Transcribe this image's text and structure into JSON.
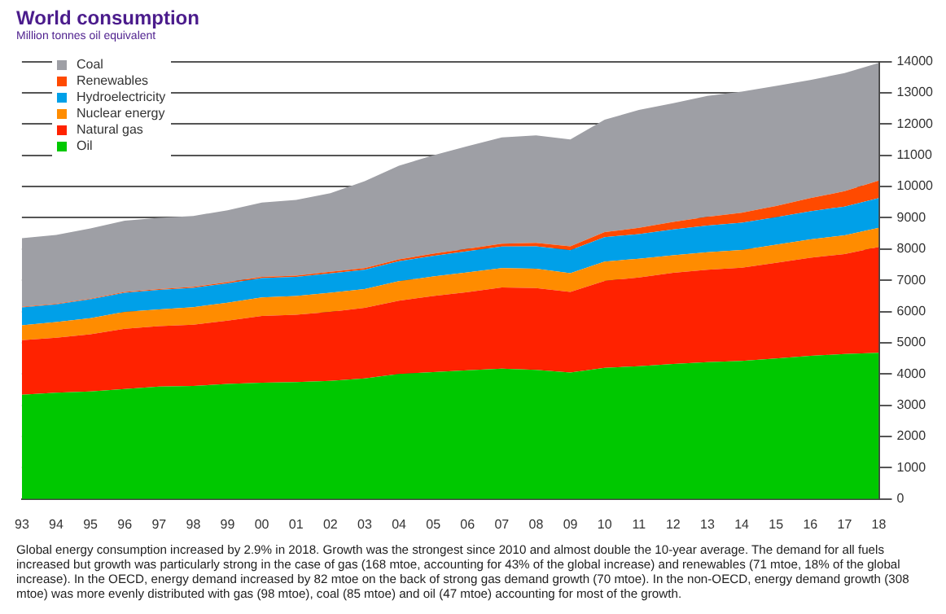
{
  "chart_data": {
    "type": "area",
    "title": "World consumption",
    "subtitle": "Million tonnes oil equivalent",
    "categories": [
      "93",
      "94",
      "95",
      "96",
      "97",
      "98",
      "99",
      "00",
      "01",
      "02",
      "03",
      "04",
      "05",
      "06",
      "07",
      "08",
      "09",
      "10",
      "11",
      "12",
      "13",
      "14",
      "15",
      "16",
      "17",
      "18"
    ],
    "stacked": true,
    "series": [
      {
        "name": "Oil",
        "color": "#00c800",
        "values": [
          3340,
          3400,
          3440,
          3520,
          3600,
          3620,
          3680,
          3720,
          3740,
          3780,
          3860,
          4000,
          4060,
          4120,
          4170,
          4130,
          4050,
          4200,
          4250,
          4320,
          4380,
          4420,
          4500,
          4580,
          4640,
          4680
        ]
      },
      {
        "name": "Natural gas",
        "color": "#ff2200",
        "values": [
          1740,
          1760,
          1830,
          1930,
          1930,
          1960,
          2030,
          2140,
          2160,
          2210,
          2260,
          2350,
          2440,
          2500,
          2600,
          2620,
          2580,
          2780,
          2840,
          2920,
          2960,
          2980,
          3060,
          3140,
          3200,
          3390
        ]
      },
      {
        "name": "Nuclear energy",
        "color": "#ff8c00",
        "values": [
          480,
          500,
          520,
          540,
          540,
          560,
          570,
          590,
          600,
          610,
          600,
          620,
          620,
          630,
          620,
          620,
          600,
          620,
          600,
          560,
          560,
          570,
          580,
          590,
          600,
          610
        ]
      },
      {
        "name": "Hydroelectricity",
        "color": "#00a0e8",
        "values": [
          570,
          570,
          600,
          610,
          620,
          620,
          620,
          620,
          610,
          620,
          620,
          640,
          660,
          680,
          690,
          720,
          730,
          780,
          790,
          830,
          850,
          870,
          880,
          900,
          920,
          950
        ]
      },
      {
        "name": "Renewables",
        "color": "#ff4a00",
        "values": [
          20,
          20,
          20,
          30,
          30,
          30,
          40,
          40,
          40,
          50,
          50,
          60,
          70,
          80,
          90,
          110,
          130,
          160,
          200,
          240,
          280,
          320,
          360,
          420,
          490,
          560
        ]
      },
      {
        "name": "Coal",
        "color": "#9e9fa5",
        "values": [
          2200,
          2200,
          2250,
          2280,
          2280,
          2270,
          2300,
          2380,
          2420,
          2520,
          2780,
          3000,
          3150,
          3280,
          3400,
          3440,
          3420,
          3600,
          3770,
          3800,
          3870,
          3880,
          3840,
          3780,
          3780,
          3770
        ]
      }
    ],
    "ylim": [
      0,
      14000
    ],
    "yticks": [
      0,
      1000,
      2000,
      3000,
      4000,
      5000,
      6000,
      7000,
      8000,
      9000,
      10000,
      11000,
      12000,
      13000,
      14000
    ],
    "grid": "y",
    "legend": "top left",
    "annotations": [
      "Global energy consumption increased by 2.9% in 2018. Growth was the strongest since 2010 and almost double the 10-year average. The demand for all fuels increased but growth was particularly strong in the case of gas (168 mtoe, accounting for 43% of the global increase) and renewables (71 mtoe, 18% of the global increase). In the OECD, energy demand increased by 82 mtoe on the back of strong gas demand growth (70 mtoe). In the non-OECD, energy demand growth (308 mtoe) was more evenly distributed with gas (98 mtoe), coal (85 mtoe) and oil (47 mtoe) accounting for most of the growth."
    ]
  }
}
